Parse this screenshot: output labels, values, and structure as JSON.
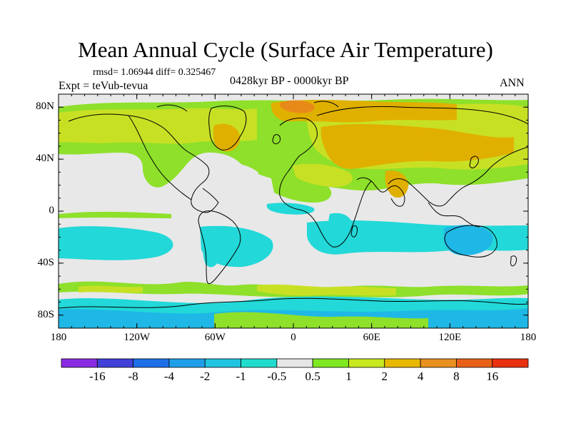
{
  "title": "Mean Annual Cycle (Surface Air Temperature)",
  "stats_text": "rmsd= 1.06944 diff= 0.325467",
  "experiment_text": "Expt = teVub-tevua",
  "period_text": "0428kyr BP - 0000kyr BP",
  "season_text": "ANN",
  "map": {
    "projection": "cylindrical-equidistant",
    "lon_range": [
      -180,
      180
    ],
    "lat_range": [
      -90,
      90
    ],
    "lat_ticks": [
      {
        "value": 80,
        "label": "80N"
      },
      {
        "value": 40,
        "label": "40N"
      },
      {
        "value": 0,
        "label": "0"
      },
      {
        "value": -40,
        "label": "40S"
      },
      {
        "value": -80,
        "label": "80S"
      }
    ],
    "lon_ticks": [
      {
        "value": -180,
        "label": "180"
      },
      {
        "value": -120,
        "label": "120W"
      },
      {
        "value": -60,
        "label": "60W"
      },
      {
        "value": 0,
        "label": "0"
      },
      {
        "value": 60,
        "label": "60E"
      },
      {
        "value": 120,
        "label": "120E"
      },
      {
        "value": 180,
        "label": "180"
      }
    ],
    "field_colors": {
      "neutral": "#e8e8e8",
      "cool_1": "#22d8d8",
      "cool_2": "#1fb8e6",
      "warm_1": "#8ee02a",
      "warm_2": "#c8e024",
      "warm_3": "#e0b000",
      "warm_4": "#e88a1a"
    }
  },
  "colorbar": {
    "colors": [
      "#8a2be2",
      "#4040d8",
      "#1e6ee8",
      "#1e9ee8",
      "#20c4e0",
      "#20dccc",
      "#e6e6e6",
      "#7ee820",
      "#c8e820",
      "#e8b800",
      "#e89020",
      "#e86018",
      "#e83010"
    ],
    "labels": [
      "-16",
      "-8",
      "-4",
      "-2",
      "-1",
      "-0.5",
      "0.5",
      "1",
      "2",
      "4",
      "8",
      "16"
    ]
  }
}
